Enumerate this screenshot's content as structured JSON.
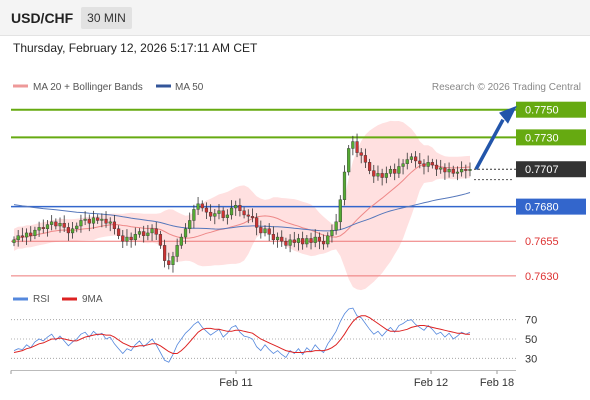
{
  "header": {
    "symbol": "USD/CHF",
    "timeframe": "30 MIN",
    "datetime": "Thursday, February 12, 2026 5:17:11 AM CET"
  },
  "legend": {
    "ma20_label": "MA 20 + Bollinger Bands",
    "ma50_label": "MA 50",
    "credit": "Research © 2026 Trading Central"
  },
  "colors": {
    "resistance": "#66aa11",
    "support_line": "#3366cc",
    "red_level": "#ee7777",
    "bollinger_fill": "#ffe0e0",
    "ma20": "#ee8888",
    "ma50": "#5577bb",
    "candle_up": "#55aa33",
    "candle_down": "#cc3333",
    "arrow": "#2255aa",
    "current_price": "#333333",
    "rsi": "#5588dd",
    "rsi_ma": "#dd2222"
  },
  "chart_data": [
    {
      "type": "candlestick",
      "series": [
        {
          "name": "MA 20 + Bollinger Bands"
        },
        {
          "name": "MA 50"
        }
      ],
      "levels": [
        {
          "value": 0.775,
          "label": "0.7750",
          "kind": "resistance"
        },
        {
          "value": 0.773,
          "label": "0.7730",
          "kind": "resistance"
        },
        {
          "value": 0.7707,
          "label": "0.7707",
          "kind": "current"
        },
        {
          "value": 0.768,
          "label": "0.7680",
          "kind": "pivot"
        },
        {
          "value": 0.7655,
          "label": "0.7655",
          "kind": "support"
        },
        {
          "value": 0.763,
          "label": "0.7630",
          "kind": "support"
        }
      ],
      "ylim": [
        0.7627,
        0.7757
      ],
      "close": [
        0.7656,
        0.7659,
        0.7658,
        0.7661,
        0.7659,
        0.7663,
        0.7665,
        0.7664,
        0.7667,
        0.7669,
        0.7666,
        0.7668,
        0.7665,
        0.7661,
        0.7664,
        0.7666,
        0.767,
        0.7671,
        0.7668,
        0.7672,
        0.767,
        0.7671,
        0.7668,
        0.7669,
        0.7664,
        0.7659,
        0.7655,
        0.7658,
        0.7656,
        0.766,
        0.7662,
        0.7659,
        0.7661,
        0.7664,
        0.766,
        0.7652,
        0.7641,
        0.7638,
        0.7644,
        0.7652,
        0.7658,
        0.7664,
        0.767,
        0.7678,
        0.7682,
        0.7679,
        0.7676,
        0.7673,
        0.7675,
        0.7677,
        0.7672,
        0.7674,
        0.7679,
        0.7681,
        0.7677,
        0.7674,
        0.7673,
        0.7672,
        0.7665,
        0.7661,
        0.7664,
        0.766,
        0.7656,
        0.7658,
        0.7655,
        0.7652,
        0.7656,
        0.7654,
        0.7657,
        0.7653,
        0.7657,
        0.7654,
        0.7658,
        0.7655,
        0.7653,
        0.7659,
        0.7663,
        0.7669,
        0.7685,
        0.7705,
        0.7722,
        0.7727,
        0.7719,
        0.7717,
        0.7712,
        0.7706,
        0.7702,
        0.7704,
        0.7701,
        0.7704,
        0.7707,
        0.7704,
        0.7709,
        0.7711,
        0.7714,
        0.7716,
        0.7713,
        0.7711,
        0.7709,
        0.7712,
        0.771,
        0.7707,
        0.7708,
        0.7705,
        0.7707,
        0.7704,
        0.7705,
        0.7707,
        0.7706,
        0.7707
      ],
      "annotations": [
        {
          "text": "forecast arrow",
          "from": 0.7707,
          "to": 0.775
        }
      ],
      "xticks": [
        "Feb 11",
        "Feb 12",
        "Feb 18"
      ]
    },
    {
      "type": "line",
      "series": [
        {
          "name": "RSI"
        },
        {
          "name": "9MA"
        }
      ],
      "ylim": [
        20,
        80
      ],
      "yticks": [
        "70",
        "50",
        "30"
      ],
      "rsi": [
        38,
        40,
        39,
        44,
        41,
        47,
        50,
        48,
        52,
        55,
        49,
        53,
        48,
        43,
        47,
        50,
        55,
        57,
        52,
        58,
        54,
        56,
        50,
        52,
        45,
        40,
        35,
        40,
        38,
        44,
        48,
        42,
        46,
        50,
        44,
        36,
        28,
        26,
        34,
        44,
        50,
        56,
        60,
        65,
        68,
        62,
        58,
        54,
        57,
        60,
        52,
        56,
        62,
        64,
        57,
        53,
        52,
        50,
        42,
        38,
        44,
        39,
        35,
        38,
        34,
        31,
        38,
        35,
        40,
        34,
        41,
        37,
        44,
        39,
        36,
        45,
        51,
        58,
        68,
        76,
        81,
        82,
        74,
        72,
        66,
        60,
        55,
        58,
        53,
        58,
        62,
        57,
        64,
        66,
        69,
        70,
        65,
        62,
        59,
        64,
        60,
        55,
        57,
        52,
        56,
        50,
        53,
        57,
        55,
        57
      ],
      "rsi_ma": [
        36,
        37,
        38,
        40,
        41,
        43,
        45,
        46,
        48,
        50,
        50,
        51,
        50,
        49,
        48,
        48,
        50,
        52,
        53,
        54,
        55,
        55,
        54,
        54,
        52,
        49,
        46,
        44,
        42,
        42,
        43,
        43,
        44,
        45,
        45,
        43,
        40,
        37,
        35,
        35,
        38,
        42,
        47,
        52,
        57,
        60,
        61,
        61,
        60,
        60,
        59,
        58,
        58,
        59,
        59,
        58,
        57,
        56,
        53,
        50,
        48,
        46,
        44,
        42,
        40,
        38,
        37,
        36,
        36,
        36,
        37,
        37,
        38,
        38,
        38,
        39,
        41,
        44,
        49,
        55,
        62,
        68,
        72,
        74,
        74,
        72,
        69,
        66,
        63,
        60,
        58,
        58,
        58,
        59,
        60,
        62,
        63,
        64,
        64,
        63,
        62,
        61,
        60,
        59,
        58,
        57,
        56,
        56,
        55,
        55
      ]
    }
  ]
}
